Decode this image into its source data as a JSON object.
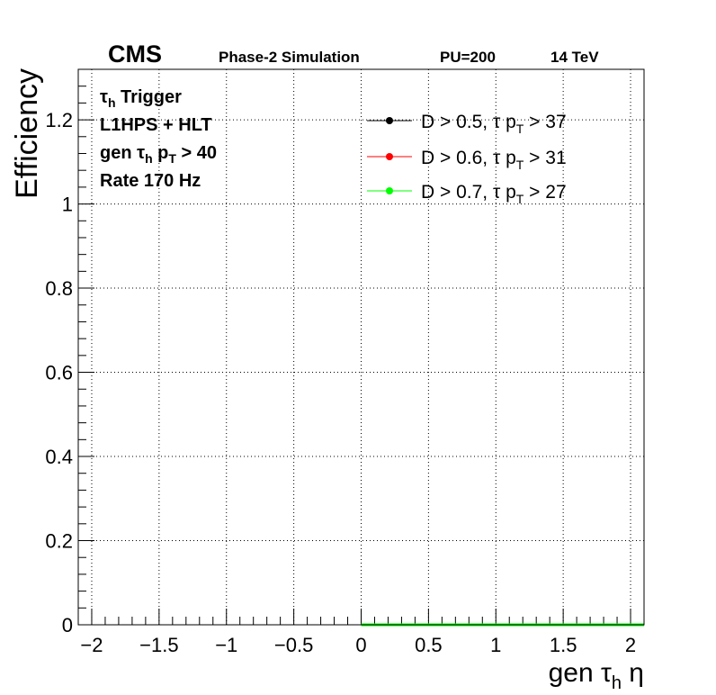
{
  "chart_data": {
    "type": "line",
    "header": {
      "experiment": "CMS",
      "status": "Phase-2 Simulation",
      "pileup": "PU=200",
      "energy": "14 TeV"
    },
    "annotations": {
      "line1": {
        "sym": "τ",
        "sub": "h",
        "rest": " Trigger"
      },
      "line2": "L1HPS + HLT",
      "line3": {
        "pre": "gen ",
        "sym": "τ",
        "sub1": "h",
        "mid": " p",
        "sub2": "T",
        "rest": " > 40"
      },
      "line4": "Rate 170 Hz"
    },
    "ylabel": "Efficiency",
    "xlabel": {
      "pre": "gen ",
      "sym": "τ",
      "sub": "h",
      "rest": " η"
    },
    "xlim": [
      -2.1,
      2.1
    ],
    "ylim": [
      0,
      1.32
    ],
    "x_ticks": [
      -2,
      -1.5,
      -1,
      -0.5,
      0,
      0.5,
      1,
      1.5,
      2
    ],
    "x_tick_labels": [
      "−2",
      "−1.5",
      "−1",
      "−0.5",
      "0",
      "0.5",
      "1",
      "1.5",
      "2"
    ],
    "y_ticks": [
      0,
      0.2,
      0.4,
      0.6,
      0.8,
      1,
      1.2
    ],
    "y_tick_labels": [
      "0",
      "0.2",
      "0.4",
      "0.6",
      "0.8",
      "1",
      "1.2"
    ],
    "grid": true,
    "legend_position": "top-right",
    "series": [
      {
        "name": {
          "pre": "D > 0.5, τ p",
          "sub": "T",
          "rest": " > 37"
        },
        "color": "#000000",
        "x": [
          0,
          2.1
        ],
        "y": [
          0,
          0
        ]
      },
      {
        "name": {
          "pre": "D > 0.6, τ p",
          "sub": "T",
          "rest": " > 31"
        },
        "color": "#ff0000",
        "x": [
          0,
          2.1
        ],
        "y": [
          0,
          0
        ]
      },
      {
        "name": {
          "pre": "D > 0.7, τ p",
          "sub": "T",
          "rest": " > 27"
        },
        "color": "#00ff00",
        "x": [
          0,
          2.1
        ],
        "y": [
          0,
          0
        ]
      }
    ]
  }
}
